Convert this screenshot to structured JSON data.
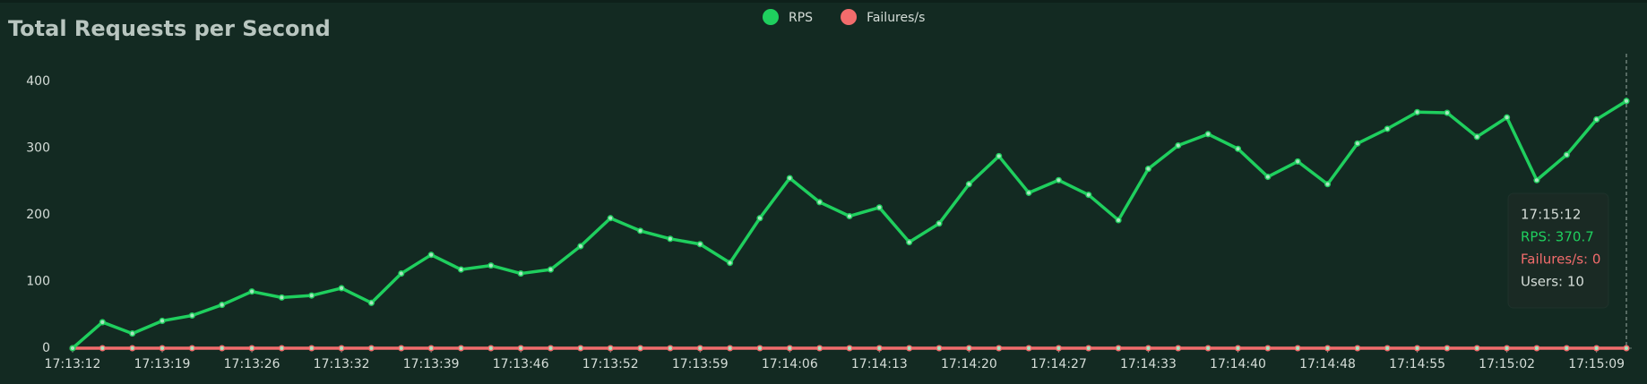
{
  "chart_data": {
    "type": "line",
    "title": "Total Requests per Second",
    "categories": [
      "17:13:12",
      null,
      null,
      "17:13:19",
      null,
      null,
      "17:13:26",
      null,
      null,
      "17:13:32",
      null,
      null,
      "17:13:39",
      null,
      null,
      "17:13:46",
      null,
      null,
      "17:13:52",
      null,
      null,
      "17:13:59",
      null,
      null,
      "17:14:06",
      null,
      null,
      "17:14:13",
      null,
      null,
      "17:14:20",
      null,
      null,
      "17:14:27",
      null,
      null,
      "17:14:33",
      null,
      null,
      "17:14:40",
      null,
      null,
      "17:14:48",
      null,
      null,
      "17:14:55",
      null,
      null,
      "17:15:02",
      null,
      null,
      "17:15:09",
      null
    ],
    "series": [
      {
        "name": "RPS",
        "color": "#1fcf5e",
        "values": [
          0,
          39,
          22,
          41,
          49,
          65,
          85,
          76,
          79,
          90,
          68,
          112,
          140,
          118,
          124,
          112,
          118,
          153,
          195,
          176,
          164,
          156,
          128,
          195,
          255,
          219,
          198,
          211,
          159,
          187,
          246,
          288,
          233,
          252,
          230,
          192,
          269,
          304,
          321,
          299,
          257,
          280,
          246,
          307,
          329,
          354,
          353,
          317,
          346,
          252,
          290,
          343,
          370.7
        ]
      },
      {
        "name": "Failures/s",
        "color": "#f26c6c",
        "values": [
          0,
          0,
          0,
          0,
          0,
          0,
          0,
          0,
          0,
          0,
          0,
          0,
          0,
          0,
          0,
          0,
          0,
          0,
          0,
          0,
          0,
          0,
          0,
          0,
          0,
          0,
          0,
          0,
          0,
          0,
          0,
          0,
          0,
          0,
          0,
          0,
          0,
          0,
          0,
          0,
          0,
          0,
          0,
          0,
          0,
          0,
          0,
          0,
          0,
          0,
          0,
          0,
          0
        ]
      }
    ],
    "ylim": [
      0,
      400
    ],
    "yticks": [
      0,
      100,
      200,
      300,
      400
    ],
    "grid": false,
    "legend": "top",
    "tooltip": {
      "title": "17:15:12",
      "lines": [
        "RPS: 370.7",
        "Failures/s: 0",
        "Users: 10"
      ]
    }
  }
}
